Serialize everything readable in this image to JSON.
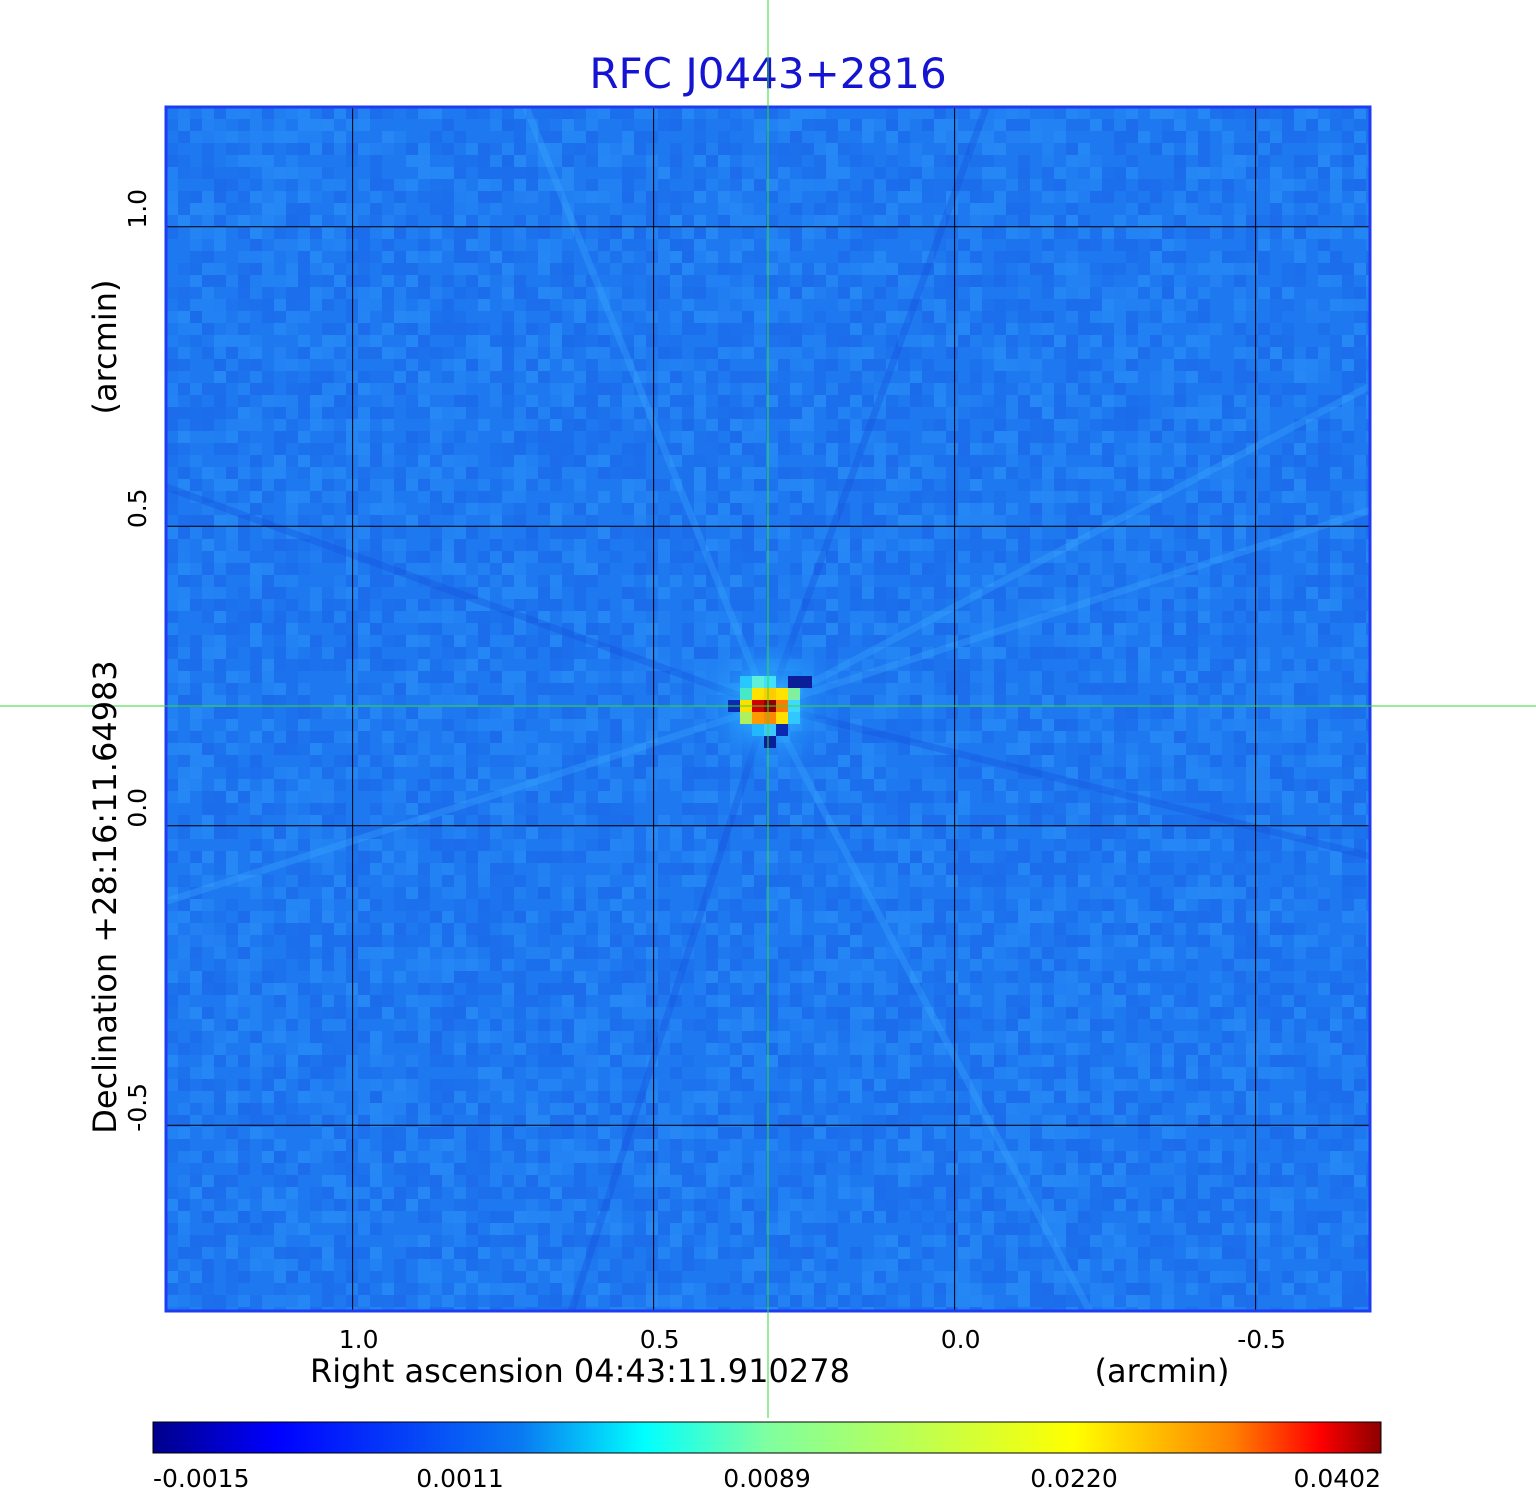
{
  "chart_data": {
    "type": "heatmap",
    "title": "RFC J0443+2816",
    "xlabel": "Right ascension  04:43:11.910278",
    "xunit": "(arcmin)",
    "ylabel": "Declination  +28:16:11.64983",
    "yunit": "(arcmin)",
    "x_ticks": [
      {
        "value": 1.0,
        "label": "1.0"
      },
      {
        "value": 0.5,
        "label": "0.5"
      },
      {
        "value": 0.0,
        "label": "0.0"
      },
      {
        "value": -0.5,
        "label": "-0.5"
      }
    ],
    "y_ticks": [
      {
        "value": 1.0,
        "label": "1.0"
      },
      {
        "value": 0.5,
        "label": "0.5"
      },
      {
        "value": 0.0,
        "label": "0.0"
      },
      {
        "value": -0.5,
        "label": "-0.5"
      }
    ],
    "xlim": [
      1.31,
      -0.69
    ],
    "ylim": [
      -0.81,
      1.2
    ],
    "grid": true,
    "crosshair": {
      "x": 0.31,
      "y": 0.2
    },
    "peak": {
      "x": 0.31,
      "y": 0.2
    },
    "colormap": "jet",
    "colorbar": {
      "labels": [
        "-0.0015",
        "0.0011",
        "0.0089",
        "0.0220",
        "0.0402"
      ],
      "values": [
        -0.0015,
        0.0011,
        0.0089,
        0.022,
        0.0402
      ],
      "colors": [
        "#00008b",
        "#0000ff",
        "#00ffff",
        "#ffff00",
        "#ff0000",
        "#8b0000"
      ]
    },
    "colors": {
      "title": "#1414d2",
      "background_field": "#1e78f0",
      "frame": "#1e3cf0",
      "grid": "#000000",
      "crosshair": "#32dc32"
    }
  }
}
